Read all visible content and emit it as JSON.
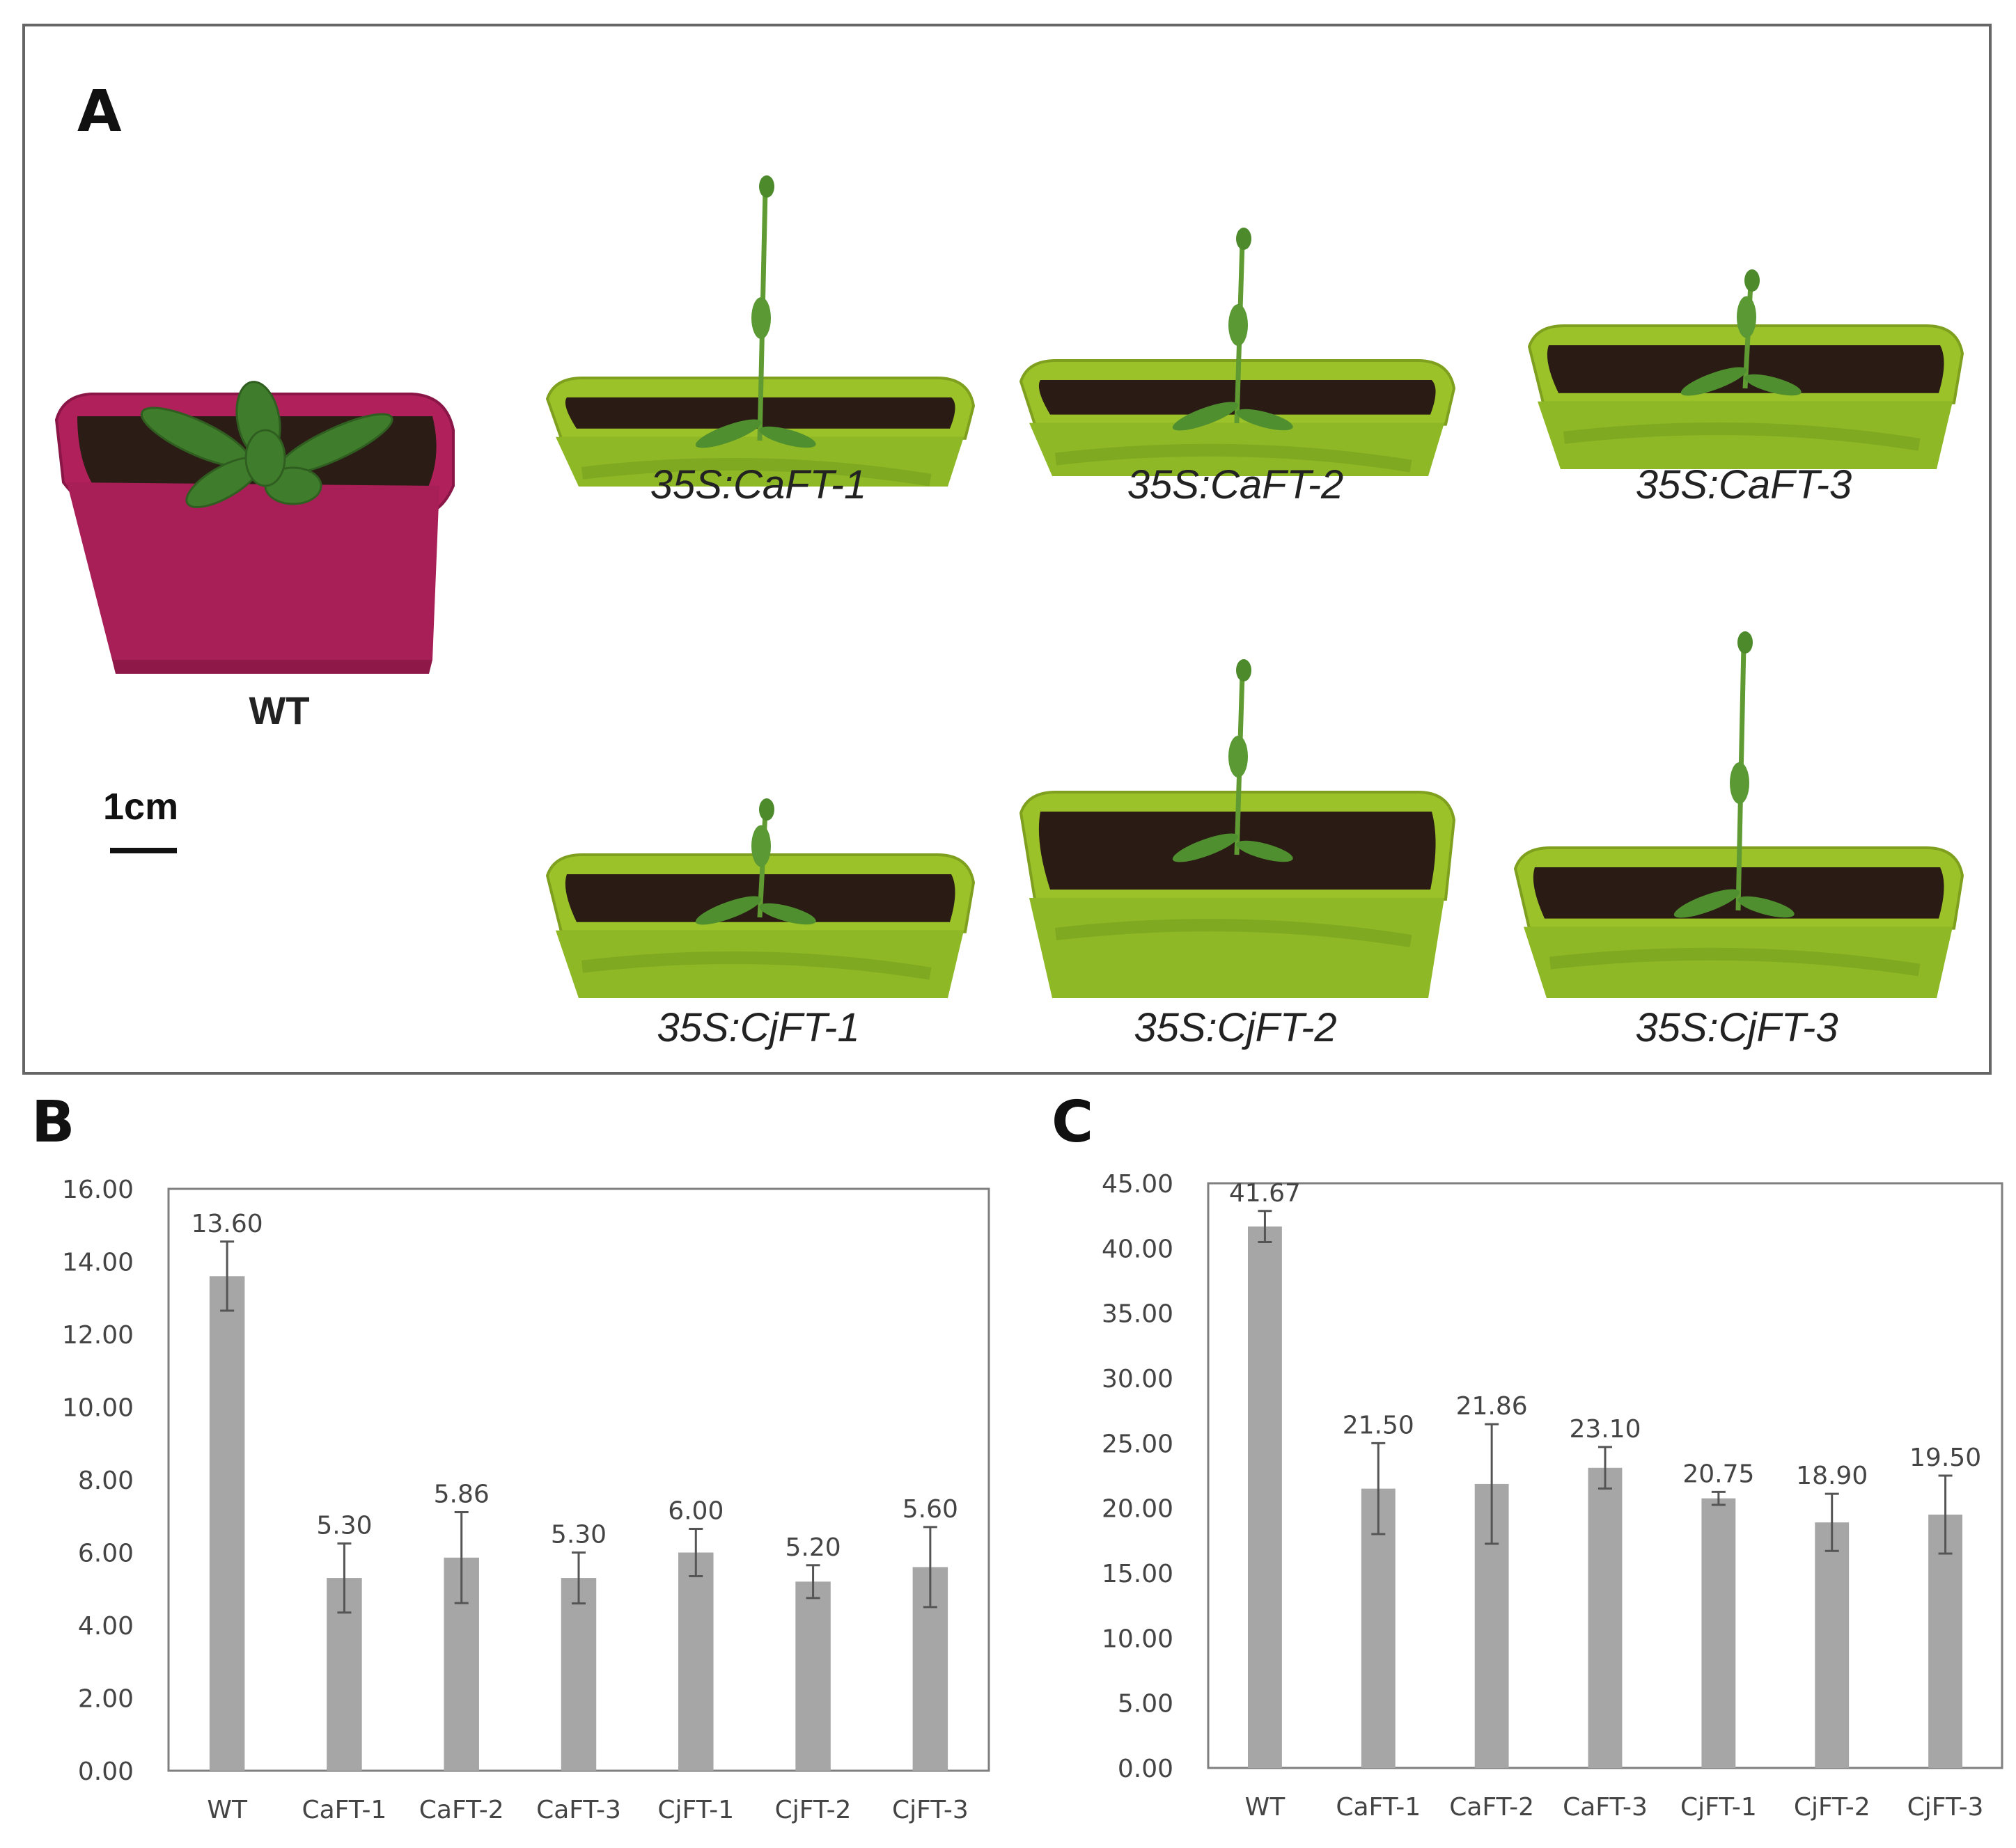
{
  "panels": {
    "a": "A",
    "b": "B",
    "c": "C"
  },
  "photo_panel": {
    "wt_label": "WT",
    "scale_label": "1cm",
    "plants": [
      {
        "label": "35S:CaFT-1",
        "pot_color": "#9cc22a"
      },
      {
        "label": "35S:CaFT-2",
        "pot_color": "#9cc22a"
      },
      {
        "label": "35S:CaFT-3",
        "pot_color": "#9cc22a"
      },
      {
        "label": "35S:CjFT-1",
        "pot_color": "#9cc22a"
      },
      {
        "label": "35S:CjFT-2",
        "pot_color": "#9cc22a"
      },
      {
        "label": "35S:CjFT-3",
        "pot_color": "#9cc22a"
      }
    ],
    "wt_pot_color": "#b0205a"
  },
  "chart_data": [
    {
      "type": "bar",
      "panel": "B",
      "categories": [
        "WT",
        "CaFT-1",
        "CaFT-2",
        "CaFT-3",
        "CjFT-1",
        "CjFT-2",
        "CjFT-3"
      ],
      "values": [
        13.6,
        5.3,
        5.86,
        5.3,
        6.0,
        5.2,
        5.6
      ],
      "value_labels": [
        "13.60",
        "5.30",
        "5.86",
        "5.30",
        "6.00",
        "5.20",
        "5.60"
      ],
      "errors": [
        0.95,
        0.95,
        1.25,
        0.7,
        0.65,
        0.45,
        1.1
      ],
      "ylim": [
        0,
        16
      ],
      "ytick_labels": [
        "0.00",
        "2.00",
        "4.00",
        "6.00",
        "8.00",
        "10.00",
        "12.00",
        "14.00",
        "16.00"
      ],
      "bar_color": "#a6a6a6",
      "title": "",
      "xlabel": "",
      "ylabel": ""
    },
    {
      "type": "bar",
      "panel": "C",
      "categories": [
        "WT",
        "CaFT-1",
        "CaFT-2",
        "CaFT-3",
        "CjFT-1",
        "CjFT-2",
        "CjFT-3"
      ],
      "values": [
        41.67,
        21.5,
        21.86,
        23.1,
        20.75,
        18.9,
        19.5
      ],
      "value_labels": [
        "41.67",
        "21.50",
        "21.86",
        "23.10",
        "20.75",
        "18.90",
        "19.50"
      ],
      "errors": [
        1.2,
        3.5,
        4.6,
        1.6,
        0.5,
        2.2,
        3.0
      ],
      "ylim": [
        0,
        45
      ],
      "ytick_labels": [
        "0.00",
        "5.00",
        "10.00",
        "15.00",
        "20.00",
        "25.00",
        "30.00",
        "35.00",
        "40.00",
        "45.00"
      ],
      "bar_color": "#a6a6a6",
      "title": "",
      "xlabel": "",
      "ylabel": ""
    }
  ]
}
